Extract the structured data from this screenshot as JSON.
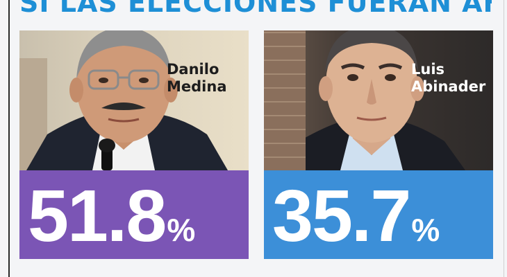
{
  "headline": "SI LAS ELECCIONES FUERAN AHORA",
  "candidates": [
    {
      "name_line1": "Danilo",
      "name_line2": "Medina",
      "value": "51.8",
      "unit": "%",
      "color": "#7b55b5"
    },
    {
      "name_line1": "Luis",
      "name_line2": "Abinader",
      "value": "35.7",
      "unit": "%",
      "color": "#3c8fd8"
    }
  ]
}
